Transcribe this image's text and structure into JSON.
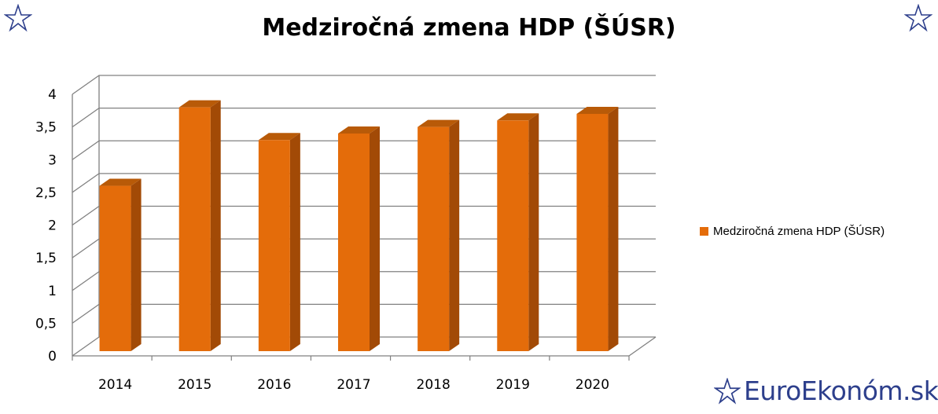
{
  "colors": {
    "bar_front": "#e46c0a",
    "bar_side": "#a24a06",
    "bar_top": "#b85a08",
    "grid": "#808080",
    "brand": "#2d3f8c"
  },
  "icons": {
    "top_left": "star-outline-icon",
    "top_right": "star-outline-icon",
    "brand": "star-outline-icon"
  },
  "brand": {
    "text": "EuroEkonóm.sk"
  },
  "chart_data": {
    "type": "bar",
    "title": "Medziročná zmena HDP (ŠÚSR)",
    "categories": [
      "2014",
      "2015",
      "2016",
      "2017",
      "2018",
      "2019",
      "2020"
    ],
    "series": [
      {
        "name": "Medziročná zmena HDP (ŠÚSR)",
        "values": [
          2.6,
          3.8,
          3.3,
          3.4,
          3.5,
          3.6,
          3.7
        ]
      }
    ],
    "yticks": [
      "0",
      "0,5",
      "1",
      "1,5",
      "2",
      "2,5",
      "3",
      "3,5",
      "4"
    ],
    "ylim": [
      0,
      4
    ],
    "xlabel": "",
    "ylabel": "",
    "grid": true,
    "legend_position": "right",
    "style": "3d-column"
  }
}
